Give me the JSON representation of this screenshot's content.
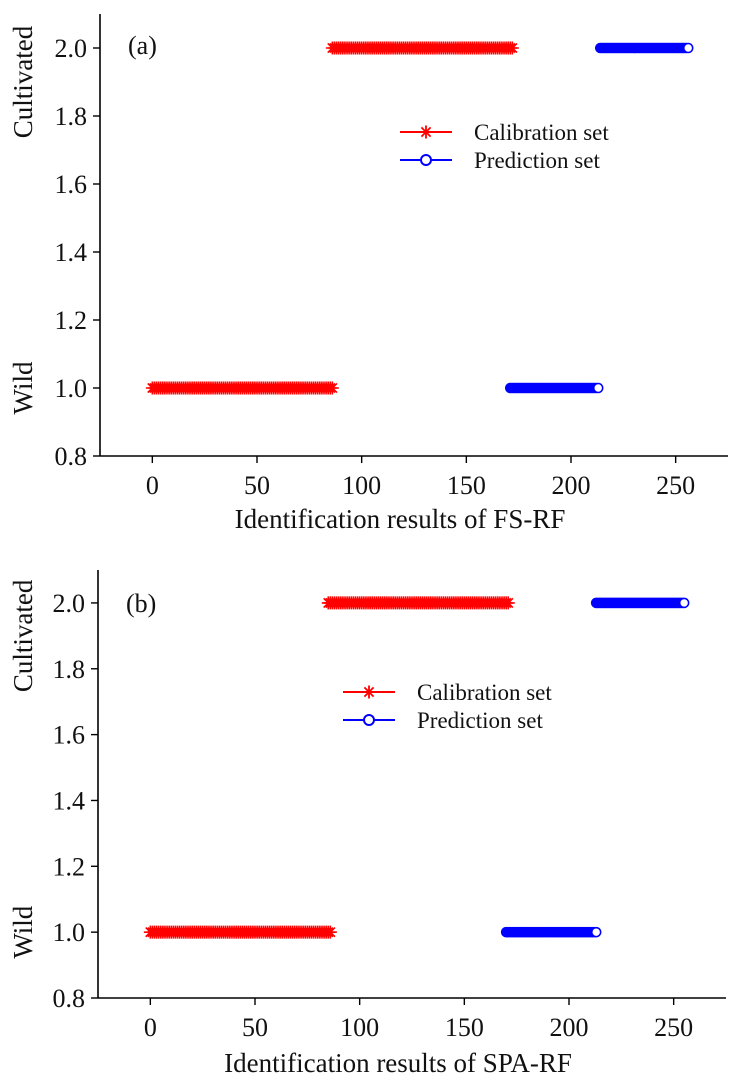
{
  "colors": {
    "calibration": "#ff0000",
    "prediction": "#0000ff",
    "axis": "#000000"
  },
  "chart_data": [
    {
      "type": "scatter",
      "panel_label": "(a)",
      "xlabel": "Identification results of FS-RF",
      "y_category_labels": {
        "upper": "Cultivated",
        "lower": "Wild"
      },
      "xlim": [
        -25,
        275
      ],
      "ylim": [
        0.8,
        2.1
      ],
      "xticks": [
        0,
        50,
        100,
        150,
        200,
        250
      ],
      "yticks": [
        0.8,
        1.0,
        1.2,
        1.4,
        1.6,
        1.8,
        2.0
      ],
      "xtick_labels": [
        "0",
        "50",
        "100",
        "150",
        "200",
        "250"
      ],
      "ytick_labels": [
        "0.8",
        "1.0",
        "1.2",
        "1.4",
        "1.6",
        "1.8",
        "2.0"
      ],
      "legend_placement": "center-right",
      "series": [
        {
          "name": "Calibration set",
          "marker": "star",
          "segments": [
            {
              "x_start": 0,
              "x_end": 86,
              "y": 1.0
            },
            {
              "x_start": 86,
              "x_end": 172,
              "y": 2.0
            }
          ]
        },
        {
          "name": "Prediction set",
          "marker": "circle",
          "segments": [
            {
              "x_start": 171,
              "x_end": 213,
              "y": 1.0
            },
            {
              "x_start": 214,
              "x_end": 256,
              "y": 2.0
            }
          ]
        }
      ]
    },
    {
      "type": "scatter",
      "panel_label": "(b)",
      "xlabel": "Identification results of SPA-RF",
      "y_category_labels": {
        "upper": "Cultivated",
        "lower": "Wild"
      },
      "xlim": [
        -25,
        275
      ],
      "ylim": [
        0.8,
        2.1
      ],
      "xticks": [
        0,
        50,
        100,
        150,
        200,
        250
      ],
      "yticks": [
        0.8,
        1.0,
        1.2,
        1.4,
        1.6,
        1.8,
        2.0
      ],
      "xtick_labels": [
        "0",
        "50",
        "100",
        "150",
        "200",
        "250"
      ],
      "ytick_labels": [
        "0.8",
        "1.0",
        "1.2",
        "1.4",
        "1.6",
        "1.8",
        "2.0"
      ],
      "legend_placement": "center",
      "series": [
        {
          "name": "Calibration set",
          "marker": "star",
          "segments": [
            {
              "x_start": 0,
              "x_end": 86,
              "y": 1.0
            },
            {
              "x_start": 85,
              "x_end": 171,
              "y": 2.0
            }
          ]
        },
        {
          "name": "Prediction set",
          "marker": "circle",
          "segments": [
            {
              "x_start": 170,
              "x_end": 213,
              "y": 1.0
            },
            {
              "x_start": 213,
              "x_end": 255,
              "y": 2.0
            }
          ]
        }
      ]
    }
  ]
}
